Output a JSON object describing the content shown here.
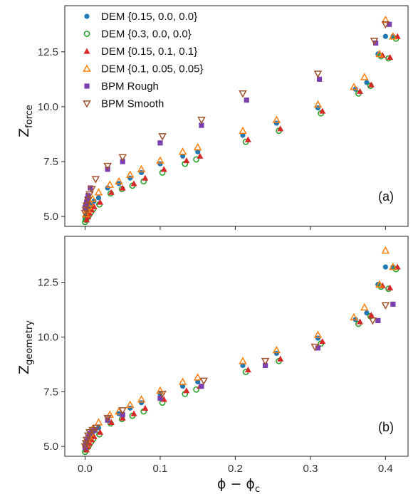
{
  "figure": {
    "panel_labels": [
      "(a)",
      "(b)"
    ],
    "xlabel_main": "ϕ − ϕ",
    "xlabel_sub": "c",
    "ylabel_top_main": "Z",
    "ylabel_top_sub": "force",
    "ylabel_bottom_main": "Z",
    "ylabel_bottom_sub": "geometry"
  },
  "chart_data": [
    {
      "type": "scatter",
      "panel": "(a)",
      "xlabel": "ϕ − ϕc",
      "ylabel": "Zforce",
      "xlim": [
        -0.027,
        0.43
      ],
      "ylim": [
        4.55,
        14.6
      ],
      "xticks": [
        0.0,
        0.1,
        0.2,
        0.3,
        0.4
      ],
      "xtick_labels": [
        "0.0",
        "0.1",
        "0.2",
        "0.3",
        "0.4"
      ],
      "yticks": [
        5.0,
        7.5,
        10.0,
        12.5
      ],
      "ytick_labels": [
        "5.0",
        "7.5",
        "10.0",
        "12.5"
      ],
      "legend": "top-left",
      "grid": false,
      "series": [
        {
          "name": "DEM {0.15, 0.0, 0.0}",
          "marker": "circle-filled",
          "color": "#1f77b4",
          "x": [
            0.0,
            0.001,
            0.002,
            0.003,
            0.004,
            0.006,
            0.008,
            0.012,
            0.018,
            0.03,
            0.045,
            0.06,
            0.075,
            0.1,
            0.13,
            0.15,
            0.21,
            0.255,
            0.31,
            0.36,
            0.375,
            0.39,
            0.4,
            0.41
          ],
          "y": [
            4.9,
            5.05,
            5.15,
            5.2,
            5.35,
            5.45,
            5.55,
            5.7,
            5.85,
            6.3,
            6.5,
            6.75,
            7.0,
            7.4,
            7.75,
            7.95,
            8.7,
            9.25,
            9.95,
            10.8,
            11.1,
            12.4,
            13.2,
            13.2
          ]
        },
        {
          "name": "DEM {0.3, 0.0, 0.0}",
          "marker": "circle-open",
          "color": "#2ca02c",
          "x": [
            0.0,
            0.001,
            0.003,
            0.005,
            0.008,
            0.011,
            0.019,
            0.034,
            0.049,
            0.063,
            0.078,
            0.103,
            0.133,
            0.148,
            0.214,
            0.258,
            0.314,
            0.364,
            0.38,
            0.394,
            0.404,
            0.414
          ],
          "y": [
            4.75,
            4.85,
            4.95,
            5.05,
            5.2,
            5.35,
            5.55,
            6.05,
            6.25,
            6.4,
            6.6,
            7.0,
            7.4,
            7.6,
            8.4,
            8.9,
            9.7,
            10.6,
            10.95,
            12.3,
            12.2,
            13.1
          ]
        },
        {
          "name": "DEM {0.15, 0.1, 0.1}",
          "marker": "triangle-up-filled",
          "color": "#d62728",
          "x": [
            0.002,
            0.004,
            0.006,
            0.009,
            0.012,
            0.02,
            0.035,
            0.05,
            0.065,
            0.08,
            0.105,
            0.135,
            0.153,
            0.217,
            0.26,
            0.316,
            0.366,
            0.381,
            0.396,
            0.406,
            0.416
          ],
          "y": [
            4.85,
            5.0,
            5.15,
            5.3,
            5.45,
            5.65,
            6.1,
            6.3,
            6.5,
            6.75,
            7.15,
            7.55,
            7.75,
            8.5,
            9.0,
            9.8,
            10.7,
            11.0,
            12.35,
            12.25,
            13.2
          ]
        },
        {
          "name": "DEM {0.1, 0.05, 0.05}",
          "marker": "triangle-up-open",
          "color": "#ff7f0e",
          "x": [
            0.001,
            0.003,
            0.005,
            0.007,
            0.01,
            0.018,
            0.033,
            0.045,
            0.06,
            0.075,
            0.1,
            0.13,
            0.15,
            0.21,
            0.255,
            0.31,
            0.358,
            0.372,
            0.392,
            0.4,
            0.41
          ],
          "y": [
            5.1,
            5.3,
            5.45,
            5.6,
            5.8,
            6.1,
            6.45,
            6.6,
            6.9,
            7.15,
            7.55,
            7.95,
            8.15,
            8.9,
            9.4,
            10.1,
            10.9,
            11.35,
            12.4,
            13.95,
            13.2
          ]
        },
        {
          "name": "BPM Rough",
          "marker": "square-filled",
          "color": "#7b3fb0",
          "x": [
            0.0,
            0.001,
            0.002,
            0.003,
            0.004,
            0.007,
            0.03,
            0.05,
            0.1,
            0.155,
            0.215,
            0.312,
            0.387,
            0.405
          ],
          "y": [
            5.4,
            5.5,
            5.65,
            5.8,
            5.95,
            6.3,
            7.15,
            7.5,
            8.35,
            9.15,
            10.3,
            11.25,
            12.9,
            13.75
          ]
        },
        {
          "name": "BPM Smooth",
          "marker": "triangle-down-open",
          "color": "#a0522d",
          "x": [
            0.0,
            0.001,
            0.002,
            0.004,
            0.006,
            0.009,
            0.014,
            0.03,
            0.05,
            0.103,
            0.155,
            0.21,
            0.31,
            0.385,
            0.4
          ],
          "y": [
            5.15,
            5.3,
            5.5,
            5.75,
            6.0,
            6.25,
            6.7,
            7.3,
            7.7,
            8.65,
            9.4,
            10.6,
            11.5,
            13.0,
            13.75
          ]
        }
      ]
    },
    {
      "type": "scatter",
      "panel": "(b)",
      "xlabel": "ϕ − ϕc",
      "ylabel": "Zgeometry",
      "xlim": [
        -0.027,
        0.43
      ],
      "ylim": [
        4.55,
        14.6
      ],
      "xticks": [
        0.0,
        0.1,
        0.2,
        0.3,
        0.4
      ],
      "xtick_labels": [
        "0.0",
        "0.1",
        "0.2",
        "0.3",
        "0.4"
      ],
      "yticks": [
        5.0,
        7.5,
        10.0,
        12.5
      ],
      "ytick_labels": [
        "5.0",
        "7.5",
        "10.0",
        "12.5"
      ],
      "grid": false,
      "series": [
        {
          "name": "DEM {0.15, 0.0, 0.0}",
          "marker": "circle-filled",
          "color": "#1f77b4",
          "x": [
            0.0,
            0.001,
            0.002,
            0.003,
            0.004,
            0.006,
            0.008,
            0.012,
            0.018,
            0.03,
            0.045,
            0.06,
            0.075,
            0.1,
            0.13,
            0.15,
            0.21,
            0.255,
            0.31,
            0.36,
            0.375,
            0.39,
            0.4,
            0.41
          ],
          "y": [
            4.9,
            5.05,
            5.15,
            5.2,
            5.35,
            5.45,
            5.55,
            5.7,
            5.85,
            6.3,
            6.5,
            6.75,
            7.0,
            7.4,
            7.75,
            7.95,
            8.7,
            9.25,
            9.95,
            10.8,
            11.1,
            12.4,
            13.2,
            13.2
          ]
        },
        {
          "name": "DEM {0.3, 0.0, 0.0}",
          "marker": "circle-open",
          "color": "#2ca02c",
          "x": [
            0.0,
            0.001,
            0.003,
            0.005,
            0.008,
            0.011,
            0.019,
            0.034,
            0.049,
            0.063,
            0.078,
            0.103,
            0.133,
            0.148,
            0.214,
            0.258,
            0.314,
            0.364,
            0.38,
            0.394,
            0.404,
            0.414
          ],
          "y": [
            4.75,
            4.85,
            4.95,
            5.05,
            5.2,
            5.35,
            5.55,
            6.05,
            6.25,
            6.4,
            6.6,
            7.0,
            7.4,
            7.6,
            8.4,
            8.9,
            9.7,
            10.6,
            10.95,
            12.3,
            12.2,
            13.1
          ]
        },
        {
          "name": "DEM {0.15, 0.1, 0.1}",
          "marker": "triangle-up-filled",
          "color": "#d62728",
          "x": [
            0.002,
            0.004,
            0.006,
            0.009,
            0.012,
            0.02,
            0.035,
            0.05,
            0.065,
            0.08,
            0.105,
            0.135,
            0.153,
            0.217,
            0.26,
            0.316,
            0.366,
            0.381,
            0.396,
            0.406,
            0.416
          ],
          "y": [
            4.85,
            5.0,
            5.15,
            5.3,
            5.45,
            5.65,
            6.1,
            6.3,
            6.5,
            6.75,
            7.15,
            7.55,
            7.75,
            8.5,
            9.0,
            9.8,
            10.7,
            11.0,
            12.35,
            12.25,
            13.2
          ]
        },
        {
          "name": "DEM {0.1, 0.05, 0.05}",
          "marker": "triangle-up-open",
          "color": "#ff7f0e",
          "x": [
            0.001,
            0.003,
            0.005,
            0.007,
            0.01,
            0.018,
            0.033,
            0.045,
            0.06,
            0.075,
            0.1,
            0.13,
            0.15,
            0.21,
            0.255,
            0.31,
            0.358,
            0.372,
            0.392,
            0.4,
            0.41
          ],
          "y": [
            5.1,
            5.3,
            5.45,
            5.6,
            5.8,
            6.1,
            6.45,
            6.6,
            6.9,
            7.15,
            7.55,
            7.95,
            8.15,
            8.9,
            9.4,
            10.1,
            10.9,
            11.35,
            12.4,
            13.95,
            13.2
          ]
        },
        {
          "name": "BPM Rough",
          "marker": "square-filled",
          "color": "#7b3fb0",
          "x": [
            0.0,
            0.001,
            0.002,
            0.004,
            0.006,
            0.009,
            0.013,
            0.03,
            0.05,
            0.1,
            0.155,
            0.24,
            0.31,
            0.39,
            0.41
          ],
          "y": [
            4.95,
            5.1,
            5.25,
            5.45,
            5.6,
            5.7,
            5.75,
            6.2,
            6.45,
            7.2,
            7.75,
            8.7,
            9.5,
            10.75,
            11.5
          ]
        },
        {
          "name": "BPM Smooth",
          "marker": "triangle-down-open",
          "color": "#a0522d",
          "x": [
            0.0,
            0.001,
            0.002,
            0.004,
            0.006,
            0.01,
            0.015,
            0.03,
            0.05,
            0.103,
            0.158,
            0.24,
            0.306,
            0.383,
            0.4
          ],
          "y": [
            5.0,
            5.15,
            5.3,
            5.5,
            5.65,
            5.75,
            5.85,
            6.3,
            6.65,
            7.4,
            8.0,
            8.9,
            9.55,
            10.75,
            11.45
          ]
        }
      ]
    }
  ]
}
